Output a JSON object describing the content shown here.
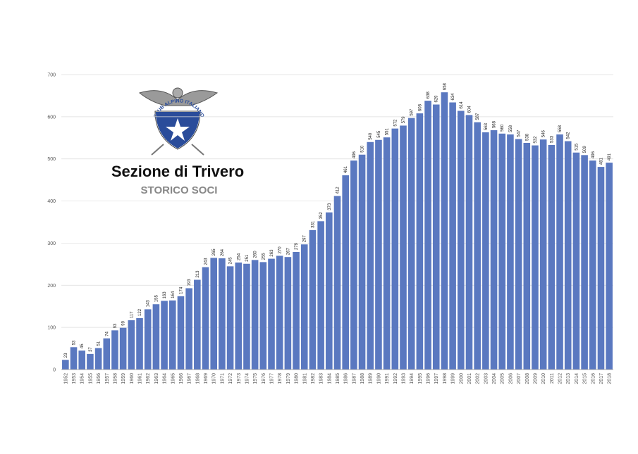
{
  "chart_data": {
    "type": "bar",
    "title": "Sezione di Trivero",
    "subtitle": "STORICO SOCI",
    "annotations": [
      "CLUB ALPINO ITALIANO"
    ],
    "categories": [
      "1952",
      "1953",
      "1954",
      "1955",
      "1956",
      "1957",
      "1958",
      "1959",
      "1960",
      "1961",
      "1962",
      "1963",
      "1964",
      "1965",
      "1966",
      "1967",
      "1968",
      "1969",
      "1970",
      "1971",
      "1972",
      "1973",
      "1974",
      "1975",
      "1976",
      "1977",
      "1978",
      "1979",
      "1980",
      "1981",
      "1982",
      "1983",
      "1984",
      "1985",
      "1986",
      "1987",
      "1988",
      "1989",
      "1990",
      "1991",
      "1992",
      "1993",
      "1994",
      "1995",
      "1996",
      "1997",
      "1998",
      "1999",
      "2000",
      "2001",
      "2002",
      "2003",
      "2004",
      "2005",
      "2006",
      "2007",
      "2008",
      "2009",
      "2010",
      "2011",
      "2012",
      "2013",
      "2014",
      "2015",
      "2016",
      "2017",
      "2018"
    ],
    "values": [
      23,
      53,
      45,
      37,
      51,
      74,
      93,
      99,
      117,
      122,
      143,
      155,
      163,
      164,
      174,
      193,
      213,
      243,
      265,
      264,
      245,
      254,
      251,
      260,
      255,
      263,
      270,
      267,
      279,
      297,
      331,
      352,
      373,
      412,
      461,
      496,
      510,
      540,
      545,
      551,
      572,
      579,
      597,
      608,
      638,
      629,
      658,
      634,
      614,
      604,
      587,
      563,
      568,
      560,
      558,
      547,
      538,
      532,
      546,
      533,
      558,
      542,
      515,
      509,
      496,
      481,
      491
    ],
    "color": "#5a78c0",
    "ylim": [
      0,
      700
    ],
    "yticks": [
      0,
      100,
      200,
      300,
      400,
      500,
      600,
      700
    ],
    "grid": true,
    "show_value_labels": true
  }
}
